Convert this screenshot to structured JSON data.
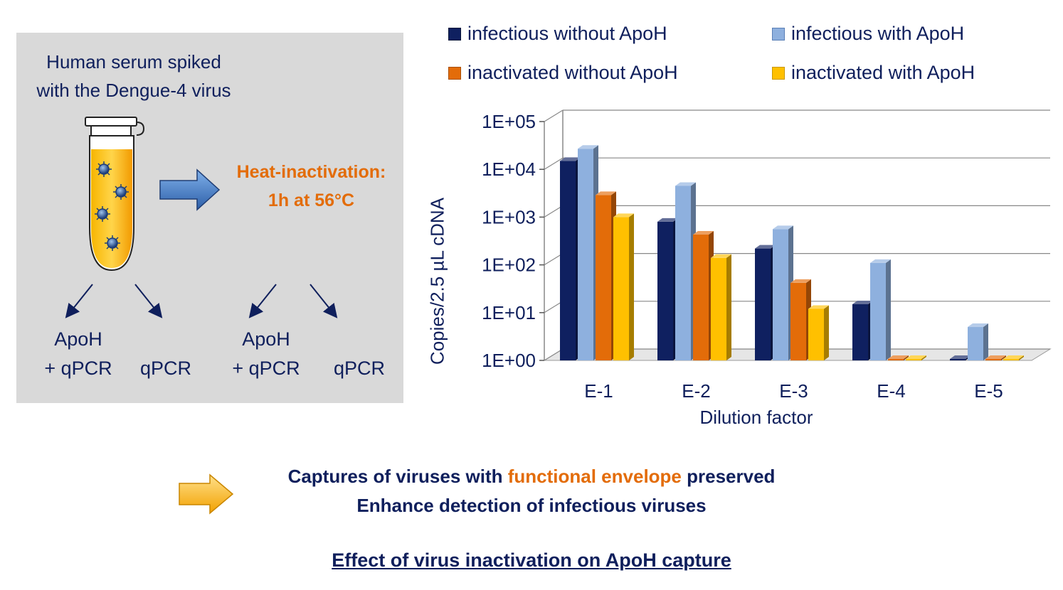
{
  "left_panel": {
    "sample_line1": "Human serum spiked",
    "sample_line2": "with the Dengue-4 virus",
    "heat_line1": "Heat-inactivation:",
    "heat_line2": "1h at 56°C",
    "branches": [
      {
        "line1": "ApoH",
        "line2": "+ qPCR"
      },
      {
        "line1": "",
        "line2": "qPCR"
      },
      {
        "line1": "ApoH",
        "line2": "+ qPCR"
      },
      {
        "line1": "",
        "line2": "qPCR"
      }
    ]
  },
  "chart_data": {
    "type": "bar",
    "y_scale": "log10",
    "ylabel": "Copies/2.5 µL cDNA",
    "xlabel": "Dilution factor",
    "ylim": [
      1,
      100000
    ],
    "yticks": [
      "1E+00",
      "1E+01",
      "1E+02",
      "1E+03",
      "1E+04",
      "1E+05"
    ],
    "categories": [
      "E-1",
      "E-2",
      "E-3",
      "E-4",
      "E-5"
    ],
    "legend_position": "top",
    "series": [
      {
        "name": "infectious without ApoH",
        "color": "#0f2060",
        "values": [
          15000,
          800,
          220,
          15,
          1
        ]
      },
      {
        "name": "infectious with ApoH",
        "color": "#8eb0de",
        "values": [
          27000,
          4500,
          560,
          110,
          5
        ]
      },
      {
        "name": "inactivated without ApoH",
        "color": "#e36c09",
        "values": [
          2900,
          430,
          42,
          1,
          1
        ]
      },
      {
        "name": "inactivated with ApoH",
        "color": "#ffc000",
        "values": [
          1000,
          140,
          12,
          1,
          1
        ]
      }
    ]
  },
  "conclusion": {
    "line1_before": "Captures of viruses with ",
    "line1_highlight": "functional envelope",
    "line1_after": " preserved",
    "line2": "Enhance detection of infectious viruses"
  },
  "footer": {
    "title": "Effect of virus inactivation on ApoH capture"
  }
}
